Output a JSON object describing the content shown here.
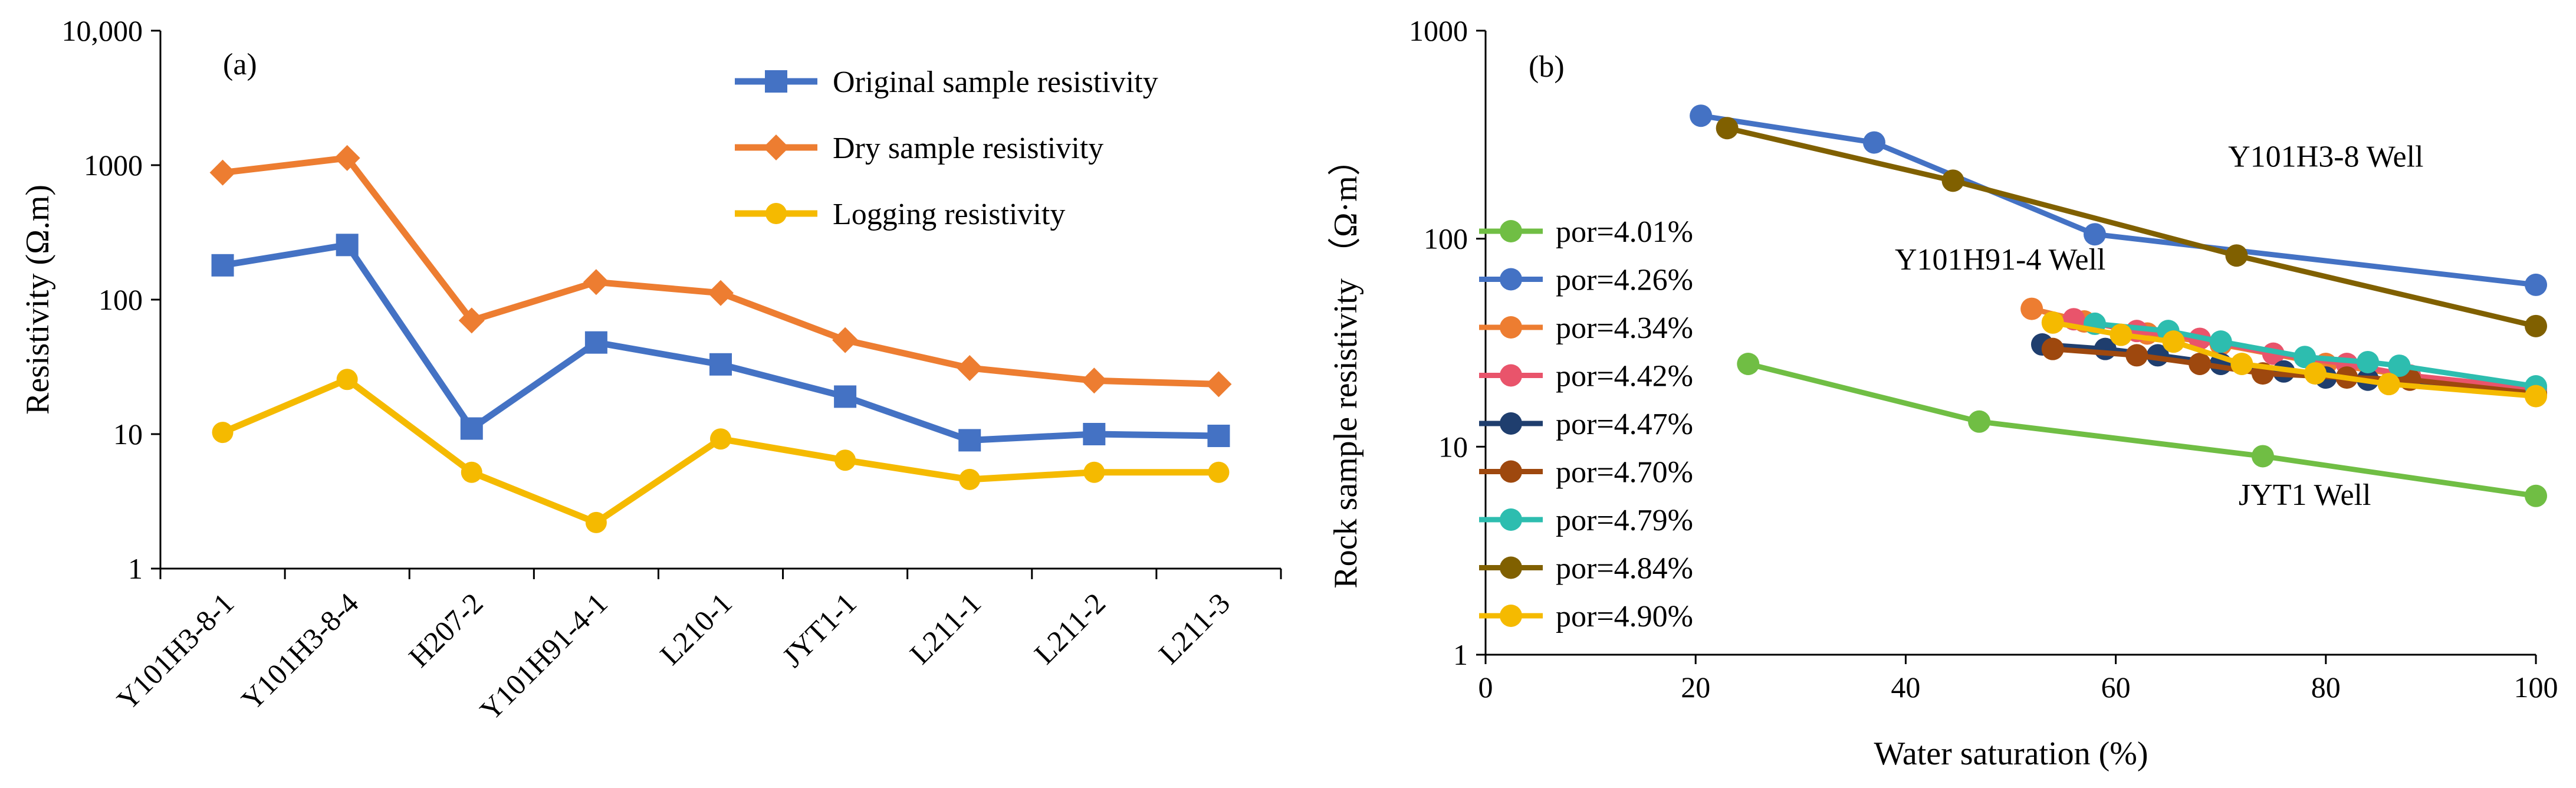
{
  "chart_data": [
    {
      "type": "line",
      "panel_label": "(a)",
      "y_scale": "log",
      "ylim": [
        1,
        10000
      ],
      "ylabel": "Resistivity (Ω.m)",
      "xlabel": "",
      "y_ticks": [
        {
          "value": 1,
          "label": "1"
        },
        {
          "value": 10,
          "label": "10"
        },
        {
          "value": 100,
          "label": "100"
        },
        {
          "value": 1000,
          "label": "1000"
        },
        {
          "value": 10000,
          "label": "10,000"
        }
      ],
      "categories": [
        "Y101H3-8-1",
        "Y101H3-8-4",
        "H207-2",
        "Y101H91-4-1",
        "L210-1",
        "JYT1-1",
        "L211-1",
        "L211-2",
        "L211-3"
      ],
      "legend_position": "top-right",
      "series": [
        {
          "name": "Original sample resistivity",
          "color": "#4472C4",
          "marker": "square",
          "values": [
            180,
            255,
            11,
            48,
            33,
            19,
            9,
            10,
            9.7
          ]
        },
        {
          "name": "Dry sample resistivity",
          "color": "#ED7D31",
          "marker": "diamond",
          "values": [
            880,
            1130,
            70,
            135,
            112,
            50,
            31,
            25,
            23.5
          ]
        },
        {
          "name": "Logging resistivity",
          "color": "#F5BA00",
          "marker": "circle",
          "values": [
            10.3,
            25.5,
            5.2,
            2.2,
            9.2,
            6.4,
            4.6,
            5.2,
            5.2
          ]
        }
      ]
    },
    {
      "type": "line",
      "panel_label": "(b)",
      "y_scale": "log",
      "ylim": [
        1,
        1000
      ],
      "xlim": [
        0,
        100
      ],
      "xlabel": "Water saturation (%)",
      "ylabel": "Rock sample resistivity （Ω·m）",
      "x_ticks": [
        {
          "value": 0,
          "label": "0"
        },
        {
          "value": 20,
          "label": "20"
        },
        {
          "value": 40,
          "label": "40"
        },
        {
          "value": 60,
          "label": "60"
        },
        {
          "value": 80,
          "label": "80"
        },
        {
          "value": 100,
          "label": "100"
        }
      ],
      "y_ticks": [
        {
          "value": 1,
          "label": "1"
        },
        {
          "value": 10,
          "label": "10"
        },
        {
          "value": 100,
          "label": "100"
        },
        {
          "value": 1000,
          "label": "1000"
        }
      ],
      "legend_position": "left",
      "annotations": [
        {
          "text": "Y101H3-8 Well",
          "x": 80,
          "y": 250
        },
        {
          "text": "Y101H91-4 Well",
          "x": 49,
          "y": 80
        },
        {
          "text": "JYT1  Well",
          "x": 78,
          "y": 5.9
        }
      ],
      "series": [
        {
          "name": "por=4.01%",
          "color": "#70BE44",
          "x": [
            25,
            47,
            74,
            100
          ],
          "y": [
            25,
            13.2,
            9,
            5.8
          ]
        },
        {
          "name": "por=4.26%",
          "color": "#4472C4",
          "x": [
            20.5,
            37,
            58,
            100
          ],
          "y": [
            390,
            290,
            105,
            60
          ]
        },
        {
          "name": "por=4.34%",
          "color": "#ED7D31",
          "x": [
            52,
            57,
            63,
            70,
            80,
            100
          ],
          "y": [
            46,
            40,
            35,
            31,
            25,
            18
          ]
        },
        {
          "name": "por=4.42%",
          "color": "#E9546B",
          "x": [
            56,
            62,
            68,
            75,
            82,
            88,
            100
          ],
          "y": [
            41,
            36,
            33,
            28,
            25,
            22,
            19
          ]
        },
        {
          "name": "por=4.47%",
          "color": "#1F3E6E",
          "x": [
            53,
            59,
            64,
            70,
            76,
            80,
            84,
            100
          ],
          "y": [
            31,
            29.5,
            27.5,
            25,
            23,
            21.5,
            21,
            18
          ]
        },
        {
          "name": "por=4.70%",
          "color": "#9E480E",
          "x": [
            54,
            62,
            68,
            74,
            82,
            88,
            100
          ],
          "y": [
            29.5,
            27.5,
            25,
            22.5,
            21.5,
            21,
            18
          ]
        },
        {
          "name": "por=4.79%",
          "color": "#2DBDAF",
          "x": [
            58,
            65,
            70,
            78,
            84,
            87,
            100
          ],
          "y": [
            39,
            36,
            32,
            27,
            25.5,
            24.5,
            19.5
          ]
        },
        {
          "name": "por=4.84%",
          "color": "#806000",
          "x": [
            23,
            44.5,
            71.5,
            100
          ],
          "y": [
            340,
            190,
            83,
            38
          ]
        },
        {
          "name": "por=4.90%",
          "color": "#F5BA00",
          "x": [
            54,
            60.5,
            65.5,
            72,
            79,
            86,
            100
          ],
          "y": [
            39.5,
            34.5,
            32,
            25,
            22.5,
            20,
            17.5
          ]
        }
      ]
    }
  ]
}
